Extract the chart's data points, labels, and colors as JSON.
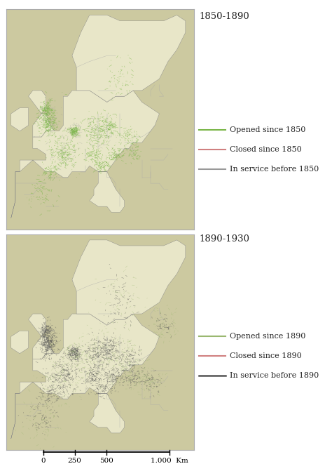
{
  "title1": "1850-1890",
  "title2": "1890-1930",
  "legend1": {
    "entries": [
      {
        "label": "Opened since 1850",
        "color": "#7ab648",
        "lw": 1.5
      },
      {
        "label": "Closed since 1850",
        "color": "#d08080",
        "lw": 1.5
      },
      {
        "label": "In service before 1850",
        "color": "#999999",
        "lw": 1.5
      }
    ]
  },
  "legend2": {
    "entries": [
      {
        "label": "Opened since 1890",
        "color": "#9ab870",
        "lw": 1.5
      },
      {
        "label": "Closed since 1890",
        "color": "#d08080",
        "lw": 1.5
      },
      {
        "label": "In service before 1890",
        "color": "#555555",
        "lw": 1.8
      }
    ]
  },
  "map_land_color": "#e8e6c8",
  "map_border_color": "#888888",
  "sea_color": "#ffffff",
  "fig_bg_color": "#ffffff",
  "outer_land_color": "#ccc9a0",
  "title_fontsize": 9.5,
  "legend_fontsize": 8,
  "scalebar_fontsize": 7.5
}
